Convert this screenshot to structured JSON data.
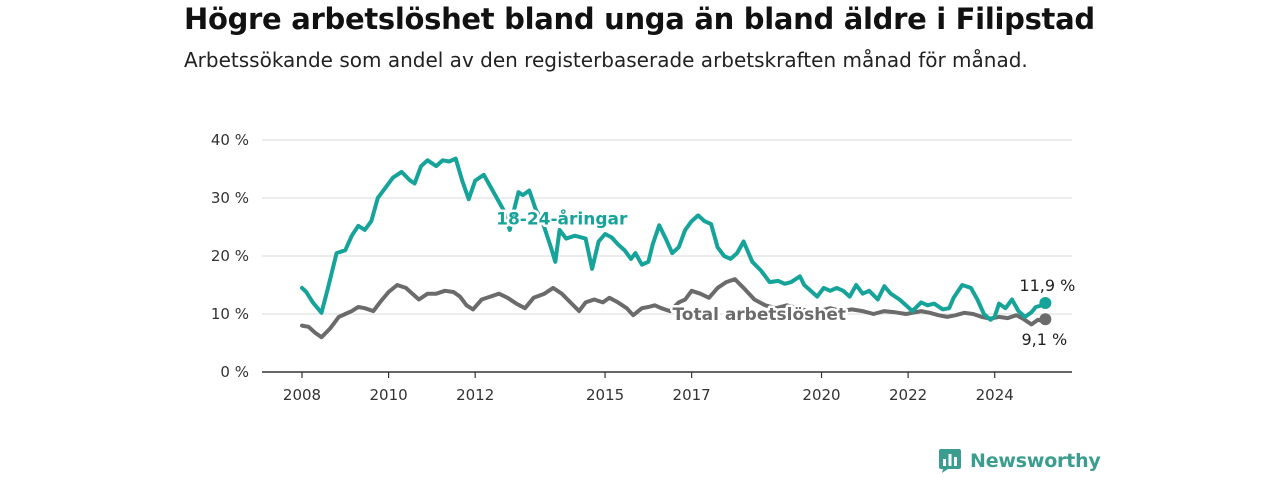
{
  "header": {
    "title": "Högre arbetslöshet bland unga än bland äldre i Filipstad",
    "subtitle": "Arbetssökande som andel av den registerbaserade arbetskraften månad för månad."
  },
  "brand": {
    "name": "Newsworthy",
    "icon": "bar-chart-icon",
    "color": "#3a9d8f"
  },
  "chart_data": {
    "type": "line",
    "title": "Högre arbetslöshet bland unga än bland äldre i Filipstad",
    "subtitle": "Arbetssökande som andel av den registerbaserade arbetskraften månad för månad.",
    "xlabel": "",
    "ylabel": "",
    "xlim": [
      2007.5,
      2025.5
    ],
    "ylim": [
      0,
      40
    ],
    "x_ticks": [
      2008,
      2010,
      2012,
      2015,
      2017,
      2020,
      2022,
      2024
    ],
    "x_tick_labels": [
      "2008",
      "2010",
      "2012",
      "2015",
      "2017",
      "2020",
      "2022",
      "2024"
    ],
    "y_ticks": [
      0,
      10,
      20,
      30,
      40
    ],
    "y_tick_labels": [
      "0 %",
      "10 %",
      "20 %",
      "30 %",
      "40 %"
    ],
    "grid": true,
    "legend": "inline labels",
    "series": [
      {
        "name": "18-24-åringar",
        "color": "#16a39a",
        "end_label": "11,9 %",
        "points": [
          [
            2008.0,
            14.5
          ],
          [
            2008.1,
            13.8
          ],
          [
            2008.25,
            12.0
          ],
          [
            2008.45,
            10.2
          ],
          [
            2008.6,
            14.5
          ],
          [
            2008.8,
            20.5
          ],
          [
            2009.0,
            21.0
          ],
          [
            2009.15,
            23.5
          ],
          [
            2009.3,
            25.2
          ],
          [
            2009.45,
            24.5
          ],
          [
            2009.6,
            26.0
          ],
          [
            2009.75,
            30.0
          ],
          [
            2009.9,
            31.5
          ],
          [
            2010.1,
            33.5
          ],
          [
            2010.3,
            34.5
          ],
          [
            2010.5,
            33.0
          ],
          [
            2010.6,
            32.5
          ],
          [
            2010.75,
            35.5
          ],
          [
            2010.9,
            36.5
          ],
          [
            2011.1,
            35.5
          ],
          [
            2011.25,
            36.5
          ],
          [
            2011.4,
            36.3
          ],
          [
            2011.55,
            36.8
          ],
          [
            2011.7,
            33.0
          ],
          [
            2011.85,
            29.8
          ],
          [
            2012.0,
            33.0
          ],
          [
            2012.2,
            34.0
          ],
          [
            2012.35,
            32.0
          ],
          [
            2012.5,
            30.0
          ],
          [
            2012.65,
            28.0
          ],
          [
            2012.8,
            24.5
          ],
          [
            2012.9,
            28.0
          ],
          [
            2013.0,
            31.0
          ],
          [
            2013.1,
            30.5
          ],
          [
            2013.25,
            31.3
          ],
          [
            2013.4,
            28.0
          ],
          [
            2013.55,
            26.0
          ],
          [
            2013.75,
            21.5
          ],
          [
            2013.85,
            19.0
          ],
          [
            2013.95,
            24.5
          ],
          [
            2014.1,
            23.0
          ],
          [
            2014.3,
            23.5
          ],
          [
            2014.55,
            23.0
          ],
          [
            2014.7,
            17.8
          ],
          [
            2014.85,
            22.5
          ],
          [
            2015.0,
            23.8
          ],
          [
            2015.15,
            23.2
          ],
          [
            2015.3,
            22.0
          ],
          [
            2015.45,
            21.0
          ],
          [
            2015.6,
            19.5
          ],
          [
            2015.7,
            20.5
          ],
          [
            2015.85,
            18.5
          ],
          [
            2016.0,
            19.0
          ],
          [
            2016.1,
            22.0
          ],
          [
            2016.25,
            25.3
          ],
          [
            2016.4,
            23.0
          ],
          [
            2016.55,
            20.5
          ],
          [
            2016.7,
            21.5
          ],
          [
            2016.85,
            24.5
          ],
          [
            2017.0,
            26.0
          ],
          [
            2017.15,
            27.0
          ],
          [
            2017.3,
            26.0
          ],
          [
            2017.45,
            25.5
          ],
          [
            2017.6,
            21.5
          ],
          [
            2017.75,
            20.0
          ],
          [
            2017.9,
            19.5
          ],
          [
            2018.05,
            20.5
          ],
          [
            2018.2,
            22.5
          ],
          [
            2018.4,
            19.0
          ],
          [
            2018.6,
            17.5
          ],
          [
            2018.8,
            15.5
          ],
          [
            2019.0,
            15.7
          ],
          [
            2019.15,
            15.2
          ],
          [
            2019.3,
            15.5
          ],
          [
            2019.5,
            16.5
          ],
          [
            2019.6,
            15.0
          ],
          [
            2019.75,
            14.0
          ],
          [
            2019.9,
            13.0
          ],
          [
            2020.05,
            14.5
          ],
          [
            2020.2,
            14.0
          ],
          [
            2020.35,
            14.5
          ],
          [
            2020.5,
            14.0
          ],
          [
            2020.65,
            13.0
          ],
          [
            2020.8,
            15.0
          ],
          [
            2020.95,
            13.5
          ],
          [
            2021.1,
            14.0
          ],
          [
            2021.3,
            12.5
          ],
          [
            2021.45,
            14.8
          ],
          [
            2021.6,
            13.5
          ],
          [
            2021.8,
            12.5
          ],
          [
            2021.95,
            11.5
          ],
          [
            2022.1,
            10.5
          ],
          [
            2022.3,
            12.0
          ],
          [
            2022.45,
            11.5
          ],
          [
            2022.6,
            11.8
          ],
          [
            2022.8,
            10.8
          ],
          [
            2022.95,
            11.0
          ],
          [
            2023.05,
            12.8
          ],
          [
            2023.25,
            15.0
          ],
          [
            2023.45,
            14.5
          ],
          [
            2023.6,
            12.5
          ],
          [
            2023.75,
            10.0
          ],
          [
            2023.9,
            9.0
          ],
          [
            2024.0,
            9.5
          ],
          [
            2024.1,
            11.8
          ],
          [
            2024.25,
            11.0
          ],
          [
            2024.4,
            12.5
          ],
          [
            2024.55,
            10.5
          ],
          [
            2024.7,
            9.5
          ],
          [
            2024.85,
            10.3
          ],
          [
            2024.95,
            11.2
          ],
          [
            2025.1,
            11.5
          ],
          [
            2025.17,
            11.9
          ]
        ]
      },
      {
        "name": "Total arbetslöshet",
        "color": "#6b6b6b",
        "end_label": "9,1 %",
        "points": [
          [
            2008.0,
            8.0
          ],
          [
            2008.15,
            7.8
          ],
          [
            2008.3,
            6.8
          ],
          [
            2008.45,
            6.0
          ],
          [
            2008.65,
            7.5
          ],
          [
            2008.85,
            9.5
          ],
          [
            2009.0,
            10.0
          ],
          [
            2009.15,
            10.5
          ],
          [
            2009.3,
            11.2
          ],
          [
            2009.45,
            11.0
          ],
          [
            2009.65,
            10.5
          ],
          [
            2009.8,
            12.0
          ],
          [
            2010.0,
            13.8
          ],
          [
            2010.2,
            15.0
          ],
          [
            2010.4,
            14.5
          ],
          [
            2010.55,
            13.5
          ],
          [
            2010.7,
            12.5
          ],
          [
            2010.9,
            13.5
          ],
          [
            2011.1,
            13.5
          ],
          [
            2011.3,
            14.0
          ],
          [
            2011.5,
            13.8
          ],
          [
            2011.65,
            13.0
          ],
          [
            2011.8,
            11.5
          ],
          [
            2011.95,
            10.8
          ],
          [
            2012.15,
            12.5
          ],
          [
            2012.35,
            13.0
          ],
          [
            2012.55,
            13.5
          ],
          [
            2012.75,
            12.8
          ],
          [
            2012.95,
            11.8
          ],
          [
            2013.15,
            11.0
          ],
          [
            2013.35,
            12.8
          ],
          [
            2013.6,
            13.5
          ],
          [
            2013.8,
            14.5
          ],
          [
            2014.0,
            13.5
          ],
          [
            2014.2,
            12.0
          ],
          [
            2014.4,
            10.5
          ],
          [
            2014.55,
            12.0
          ],
          [
            2014.75,
            12.5
          ],
          [
            2014.95,
            12.0
          ],
          [
            2015.1,
            12.8
          ],
          [
            2015.3,
            12.0
          ],
          [
            2015.5,
            11.0
          ],
          [
            2015.65,
            9.8
          ],
          [
            2015.85,
            11.0
          ],
          [
            2016.0,
            11.2
          ],
          [
            2016.15,
            11.5
          ],
          [
            2016.3,
            11.0
          ],
          [
            2016.5,
            10.5
          ],
          [
            2016.7,
            12.0
          ],
          [
            2016.85,
            12.5
          ],
          [
            2017.0,
            14.0
          ],
          [
            2017.2,
            13.5
          ],
          [
            2017.4,
            12.8
          ],
          [
            2017.6,
            14.5
          ],
          [
            2017.8,
            15.5
          ],
          [
            2018.0,
            16.0
          ],
          [
            2018.2,
            14.5
          ],
          [
            2018.45,
            12.5
          ],
          [
            2018.7,
            11.5
          ],
          [
            2018.95,
            11.0
          ],
          [
            2019.2,
            11.5
          ],
          [
            2019.45,
            11.0
          ],
          [
            2019.7,
            10.5
          ],
          [
            2019.95,
            10.5
          ],
          [
            2020.2,
            11.0
          ],
          [
            2020.45,
            10.5
          ],
          [
            2020.7,
            10.8
          ],
          [
            2020.95,
            10.5
          ],
          [
            2021.2,
            10.0
          ],
          [
            2021.45,
            10.5
          ],
          [
            2021.7,
            10.3
          ],
          [
            2021.95,
            10.0
          ],
          [
            2022.1,
            10.2
          ],
          [
            2022.3,
            10.5
          ],
          [
            2022.5,
            10.2
          ],
          [
            2022.7,
            9.8
          ],
          [
            2022.9,
            9.5
          ],
          [
            2023.1,
            9.8
          ],
          [
            2023.3,
            10.2
          ],
          [
            2023.5,
            10.0
          ],
          [
            2023.7,
            9.5
          ],
          [
            2023.9,
            9.2
          ],
          [
            2024.1,
            9.5
          ],
          [
            2024.3,
            9.3
          ],
          [
            2024.5,
            9.8
          ],
          [
            2024.65,
            9.2
          ],
          [
            2024.85,
            8.2
          ],
          [
            2025.0,
            9.0
          ],
          [
            2025.1,
            8.8
          ],
          [
            2025.17,
            9.1
          ]
        ]
      }
    ],
    "annotations": [
      {
        "text": "18-24-åringar",
        "series": "18-24-åringar",
        "x": 2014.0,
        "y": 26.5
      },
      {
        "text": "Total arbetslöshet",
        "series": "Total arbetslöshet",
        "x": 2018.7,
        "y": 10.0
      }
    ]
  }
}
